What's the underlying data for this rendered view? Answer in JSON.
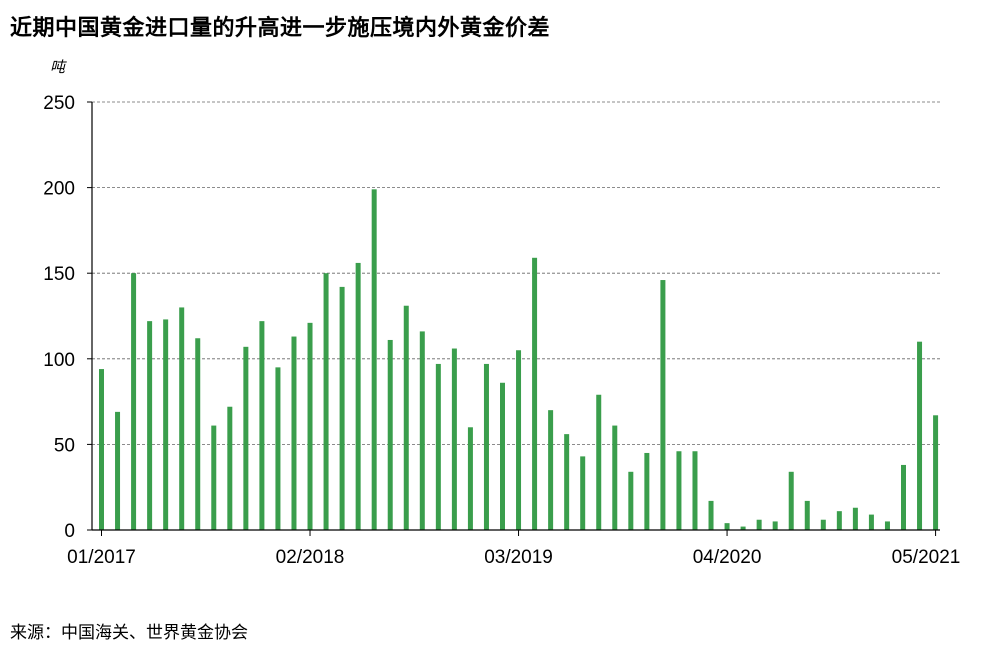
{
  "title": "近期中国黄金进口量的升高进一步施压境内外黄金价差",
  "unit_label": "吨",
  "source": "来源：中国海关、世界黄金协会",
  "chart_data": {
    "type": "bar",
    "color": "#3A9E4C",
    "grid": true,
    "ylim": [
      0,
      250
    ],
    "yticks": [
      0,
      50,
      100,
      150,
      200,
      250
    ],
    "xtick_labels": [
      {
        "label": "01/2017",
        "index": 0
      },
      {
        "label": "02/2018",
        "index": 13
      },
      {
        "label": "03/2019",
        "index": 26
      },
      {
        "label": "04/2020",
        "index": 39
      },
      {
        "label": "05/2021",
        "index": 52
      }
    ],
    "categories": [
      "01/2017",
      "02/2017",
      "03/2017",
      "04/2017",
      "05/2017",
      "06/2017",
      "07/2017",
      "08/2017",
      "09/2017",
      "10/2017",
      "11/2017",
      "12/2017",
      "01/2018",
      "02/2018",
      "03/2018",
      "04/2018",
      "05/2018",
      "06/2018",
      "07/2018",
      "08/2018",
      "09/2018",
      "10/2018",
      "11/2018",
      "12/2018",
      "01/2019",
      "02/2019",
      "03/2019",
      "04/2019",
      "05/2019",
      "06/2019",
      "07/2019",
      "08/2019",
      "09/2019",
      "10/2019",
      "11/2019",
      "12/2019",
      "01/2020",
      "02/2020",
      "03/2020",
      "04/2020",
      "05/2020",
      "06/2020",
      "07/2020",
      "08/2020",
      "09/2020",
      "10/2020",
      "11/2020",
      "12/2020",
      "01/2021",
      "02/2021",
      "03/2021",
      "04/2021",
      "05/2021"
    ],
    "values": [
      94,
      69,
      150,
      122,
      123,
      130,
      112,
      61,
      72,
      107,
      122,
      95,
      113,
      121,
      150,
      142,
      156,
      199,
      111,
      131,
      116,
      97,
      106,
      60,
      97,
      86,
      105,
      159,
      70,
      56,
      43,
      79,
      61,
      34,
      45,
      146,
      46,
      46,
      17,
      4,
      2,
      6,
      5,
      34,
      17,
      6,
      11,
      13,
      9,
      5,
      38,
      110,
      67
    ]
  }
}
